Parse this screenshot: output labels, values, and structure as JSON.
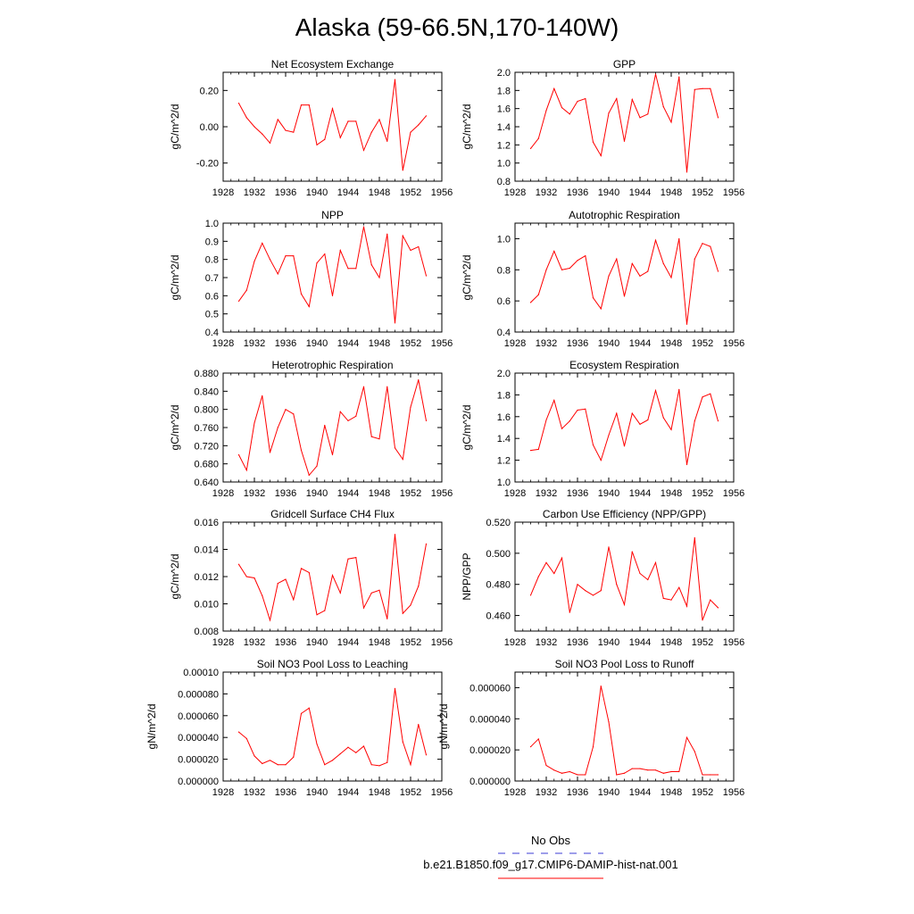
{
  "figure_title": "Alaska (59-66.5N,170-140W)",
  "legend": {
    "obs_label": "No Obs",
    "obs_color": "#3b3bd6",
    "model_label": "b.e21.B1850.f09_g17.CMIP6-DAMIP-hist-nat.001",
    "model_color": "#ff0000"
  },
  "chart_data": [
    {
      "type": "line",
      "title": "Net Ecosystem Exchange",
      "ylabel": "gC/m^2/d",
      "xlim": [
        1928,
        1956
      ],
      "xticks": [
        1928,
        1932,
        1936,
        1940,
        1944,
        1948,
        1952,
        1956
      ],
      "ylim": [
        -0.3,
        0.3
      ],
      "yticks": [
        -0.2,
        0.0,
        0.2
      ],
      "ytick_labels": [
        "-0.20",
        "0.00",
        "0.20"
      ],
      "x": [
        1930,
        1931,
        1932,
        1933,
        1934,
        1935,
        1936,
        1937,
        1938,
        1939,
        1940,
        1941,
        1942,
        1943,
        1944,
        1945,
        1946,
        1947,
        1948,
        1949,
        1950,
        1951,
        1952,
        1953,
        1954
      ],
      "values": [
        0.13,
        0.05,
        0.0,
        -0.04,
        -0.09,
        0.04,
        -0.02,
        -0.03,
        0.12,
        0.12,
        -0.1,
        -0.07,
        0.1,
        -0.06,
        0.03,
        0.03,
        -0.13,
        -0.03,
        0.04,
        -0.08,
        0.26,
        -0.24,
        -0.03,
        0.01,
        0.06
      ]
    },
    {
      "type": "line",
      "title": "GPP",
      "ylabel": "gC/m^2/d",
      "xlim": [
        1928,
        1956
      ],
      "xticks": [
        1928,
        1932,
        1936,
        1940,
        1944,
        1948,
        1952,
        1956
      ],
      "ylim": [
        0.8,
        2.0
      ],
      "yticks": [
        0.8,
        1.0,
        1.2,
        1.4,
        1.6,
        1.8,
        2.0
      ],
      "ytick_labels": [
        "0.8",
        "1.0",
        "1.2",
        "1.4",
        "1.6",
        "1.8",
        "2.0"
      ],
      "x": [
        1930,
        1931,
        1932,
        1933,
        1934,
        1935,
        1936,
        1937,
        1938,
        1939,
        1940,
        1941,
        1942,
        1943,
        1944,
        1945,
        1946,
        1947,
        1948,
        1949,
        1950,
        1951,
        1952,
        1953,
        1954
      ],
      "values": [
        1.16,
        1.27,
        1.58,
        1.82,
        1.61,
        1.54,
        1.68,
        1.71,
        1.23,
        1.08,
        1.55,
        1.71,
        1.24,
        1.7,
        1.5,
        1.54,
        1.98,
        1.62,
        1.45,
        1.95,
        0.9,
        1.81,
        1.82,
        1.82,
        1.5
      ]
    },
    {
      "type": "line",
      "title": "NPP",
      "ylabel": "gC/m^2/d",
      "xlim": [
        1928,
        1956
      ],
      "xticks": [
        1928,
        1932,
        1936,
        1940,
        1944,
        1948,
        1952,
        1956
      ],
      "ylim": [
        0.4,
        1.0
      ],
      "yticks": [
        0.4,
        0.5,
        0.6,
        0.7,
        0.8,
        0.9,
        1.0
      ],
      "ytick_labels": [
        "0.4",
        "0.5",
        "0.6",
        "0.7",
        "0.8",
        "0.9",
        "1.0"
      ],
      "x": [
        1930,
        1931,
        1932,
        1933,
        1934,
        1935,
        1936,
        1937,
        1938,
        1939,
        1940,
        1941,
        1942,
        1943,
        1944,
        1945,
        1946,
        1947,
        1948,
        1949,
        1950,
        1951,
        1952,
        1953,
        1954
      ],
      "values": [
        0.57,
        0.63,
        0.79,
        0.89,
        0.8,
        0.72,
        0.82,
        0.82,
        0.61,
        0.54,
        0.78,
        0.83,
        0.6,
        0.85,
        0.75,
        0.75,
        0.98,
        0.77,
        0.7,
        0.94,
        0.45,
        0.93,
        0.85,
        0.87,
        0.71
      ]
    },
    {
      "type": "line",
      "title": "Autotrophic Respiration",
      "ylabel": "gC/m^2/d",
      "xlim": [
        1928,
        1956
      ],
      "xticks": [
        1928,
        1932,
        1936,
        1940,
        1944,
        1948,
        1952,
        1956
      ],
      "ylim": [
        0.4,
        1.1
      ],
      "yticks": [
        0.4,
        0.6,
        0.8,
        1.0
      ],
      "ytick_labels": [
        "0.4",
        "0.6",
        "0.8",
        "1.0"
      ],
      "x": [
        1930,
        1931,
        1932,
        1933,
        1934,
        1935,
        1936,
        1937,
        1938,
        1939,
        1940,
        1941,
        1942,
        1943,
        1944,
        1945,
        1946,
        1947,
        1948,
        1949,
        1950,
        1951,
        1952,
        1953,
        1954
      ],
      "values": [
        0.59,
        0.64,
        0.8,
        0.92,
        0.8,
        0.81,
        0.86,
        0.89,
        0.62,
        0.55,
        0.76,
        0.87,
        0.63,
        0.84,
        0.76,
        0.79,
        0.99,
        0.84,
        0.75,
        1.0,
        0.45,
        0.87,
        0.97,
        0.95,
        0.79
      ]
    },
    {
      "type": "line",
      "title": "Heterotrophic Respiration",
      "ylabel": "gC/m^2/d",
      "xlim": [
        1928,
        1956
      ],
      "xticks": [
        1928,
        1932,
        1936,
        1940,
        1944,
        1948,
        1952,
        1956
      ],
      "ylim": [
        0.64,
        0.88
      ],
      "yticks": [
        0.64,
        0.68,
        0.72,
        0.76,
        0.8,
        0.84,
        0.88
      ],
      "ytick_labels": [
        "0.640",
        "0.680",
        "0.720",
        "0.760",
        "0.800",
        "0.840",
        "0.880"
      ],
      "x": [
        1930,
        1931,
        1932,
        1933,
        1934,
        1935,
        1936,
        1937,
        1938,
        1939,
        1940,
        1941,
        1942,
        1943,
        1944,
        1945,
        1946,
        1947,
        1948,
        1949,
        1950,
        1951,
        1952,
        1953,
        1954
      ],
      "values": [
        0.7,
        0.666,
        0.77,
        0.83,
        0.705,
        0.76,
        0.8,
        0.79,
        0.71,
        0.655,
        0.675,
        0.765,
        0.7,
        0.795,
        0.775,
        0.785,
        0.85,
        0.74,
        0.735,
        0.85,
        0.715,
        0.69,
        0.805,
        0.865,
        0.775
      ]
    },
    {
      "type": "line",
      "title": "Ecosystem Respiration",
      "ylabel": "gC/m^2/d",
      "xlim": [
        1928,
        1956
      ],
      "xticks": [
        1928,
        1932,
        1936,
        1940,
        1944,
        1948,
        1952,
        1956
      ],
      "ylim": [
        1.0,
        2.0
      ],
      "yticks": [
        1.0,
        1.2,
        1.4,
        1.6,
        1.8,
        2.0
      ],
      "ytick_labels": [
        "1.0",
        "1.2",
        "1.4",
        "1.6",
        "1.8",
        "2.0"
      ],
      "x": [
        1930,
        1931,
        1932,
        1933,
        1934,
        1935,
        1936,
        1937,
        1938,
        1939,
        1940,
        1941,
        1942,
        1943,
        1944,
        1945,
        1946,
        1947,
        1948,
        1949,
        1950,
        1951,
        1952,
        1953,
        1954
      ],
      "values": [
        1.29,
        1.3,
        1.57,
        1.75,
        1.49,
        1.56,
        1.66,
        1.67,
        1.34,
        1.2,
        1.43,
        1.63,
        1.33,
        1.63,
        1.53,
        1.57,
        1.84,
        1.59,
        1.48,
        1.85,
        1.16,
        1.56,
        1.78,
        1.81,
        1.56
      ]
    },
    {
      "type": "line",
      "title": "Gridcell Surface CH4 Flux",
      "ylabel": "gC/m^2/d",
      "xlim": [
        1928,
        1956
      ],
      "xticks": [
        1928,
        1932,
        1936,
        1940,
        1944,
        1948,
        1952,
        1956
      ],
      "ylim": [
        0.008,
        0.016
      ],
      "yticks": [
        0.008,
        0.01,
        0.012,
        0.014,
        0.016
      ],
      "ytick_labels": [
        "0.008",
        "0.010",
        "0.012",
        "0.014",
        "0.016"
      ],
      "x": [
        1930,
        1931,
        1932,
        1933,
        1934,
        1935,
        1936,
        1937,
        1938,
        1939,
        1940,
        1941,
        1942,
        1943,
        1944,
        1945,
        1946,
        1947,
        1948,
        1949,
        1950,
        1951,
        1952,
        1953,
        1954
      ],
      "values": [
        0.0129,
        0.012,
        0.0119,
        0.0106,
        0.0088,
        0.0115,
        0.0118,
        0.0103,
        0.0126,
        0.0123,
        0.0092,
        0.0095,
        0.0121,
        0.0108,
        0.0133,
        0.0134,
        0.0097,
        0.0108,
        0.011,
        0.0089,
        0.0151,
        0.0093,
        0.0099,
        0.0113,
        0.0144
      ]
    },
    {
      "type": "line",
      "title": "Carbon Use Efficiency (NPP/GPP)",
      "ylabel": "NPP/GPP",
      "xlim": [
        1928,
        1956
      ],
      "xticks": [
        1928,
        1932,
        1936,
        1940,
        1944,
        1948,
        1952,
        1956
      ],
      "ylim": [
        0.45,
        0.52
      ],
      "yticks": [
        0.46,
        0.48,
        0.5,
        0.52
      ],
      "ytick_labels": [
        "0.460",
        "0.480",
        "0.500",
        "0.520"
      ],
      "x": [
        1930,
        1931,
        1932,
        1933,
        1934,
        1935,
        1936,
        1937,
        1938,
        1939,
        1940,
        1941,
        1942,
        1943,
        1944,
        1945,
        1946,
        1947,
        1948,
        1949,
        1950,
        1951,
        1952,
        1953,
        1954
      ],
      "values": [
        0.473,
        0.485,
        0.494,
        0.487,
        0.497,
        0.462,
        0.48,
        0.476,
        0.473,
        0.476,
        0.504,
        0.48,
        0.467,
        0.501,
        0.487,
        0.483,
        0.494,
        0.471,
        0.47,
        0.478,
        0.466,
        0.51,
        0.457,
        0.47,
        0.465
      ]
    },
    {
      "type": "line",
      "title": "Soil NO3 Pool Loss to Leaching",
      "ylabel": "gN/m^2/d",
      "xlim": [
        1928,
        1956
      ],
      "xticks": [
        1928,
        1932,
        1936,
        1940,
        1944,
        1948,
        1952,
        1956
      ],
      "ylim": [
        0.0,
        0.0001
      ],
      "yticks": [
        0.0,
        2e-05,
        4e-05,
        6e-05,
        8e-05,
        0.0001
      ],
      "ytick_labels": [
        "0.000000",
        "0.000020",
        "0.000040",
        "0.000060",
        "0.000080",
        "0.00010"
      ],
      "x": [
        1930,
        1931,
        1932,
        1933,
        1934,
        1935,
        1936,
        1937,
        1938,
        1939,
        1940,
        1941,
        1942,
        1943,
        1944,
        1945,
        1946,
        1947,
        1948,
        1949,
        1950,
        1951,
        1952,
        1953,
        1954
      ],
      "values": [
        4.5e-05,
        3.9e-05,
        2.3e-05,
        1.6e-05,
        1.9e-05,
        1.5e-05,
        1.5e-05,
        2.2e-05,
        6.2e-05,
        6.7e-05,
        3.4e-05,
        1.5e-05,
        1.9e-05,
        2.5e-05,
        3.1e-05,
        2.6e-05,
        3.2e-05,
        1.5e-05,
        1.4e-05,
        1.7e-05,
        8.5e-05,
        3.6e-05,
        1.5e-05,
        5.2e-05,
        2.4e-05
      ]
    },
    {
      "type": "line",
      "title": "Soil NO3 Pool Loss to Runoff",
      "ylabel": "gN/m^2/d",
      "xlim": [
        1928,
        1956
      ],
      "xticks": [
        1928,
        1932,
        1936,
        1940,
        1944,
        1948,
        1952,
        1956
      ],
      "ylim": [
        0.0,
        7e-05
      ],
      "yticks": [
        0.0,
        2e-05,
        4e-05,
        6e-05
      ],
      "ytick_labels": [
        "0.000000",
        "0.000020",
        "0.000040",
        "0.000060"
      ],
      "x": [
        1930,
        1931,
        1932,
        1933,
        1934,
        1935,
        1936,
        1937,
        1938,
        1939,
        1940,
        1941,
        1942,
        1943,
        1944,
        1945,
        1946,
        1947,
        1948,
        1949,
        1950,
        1951,
        1952,
        1953,
        1954
      ],
      "values": [
        2.2e-05,
        2.7e-05,
        1e-05,
        7e-06,
        5e-06,
        6e-06,
        4e-06,
        4e-06,
        2.2e-05,
        6.1e-05,
        3.8e-05,
        4e-06,
        5e-06,
        8e-06,
        8e-06,
        7e-06,
        7e-06,
        5e-06,
        6e-06,
        6e-06,
        2.8e-05,
        1.9e-05,
        4e-06,
        4e-06,
        4e-06
      ]
    }
  ]
}
